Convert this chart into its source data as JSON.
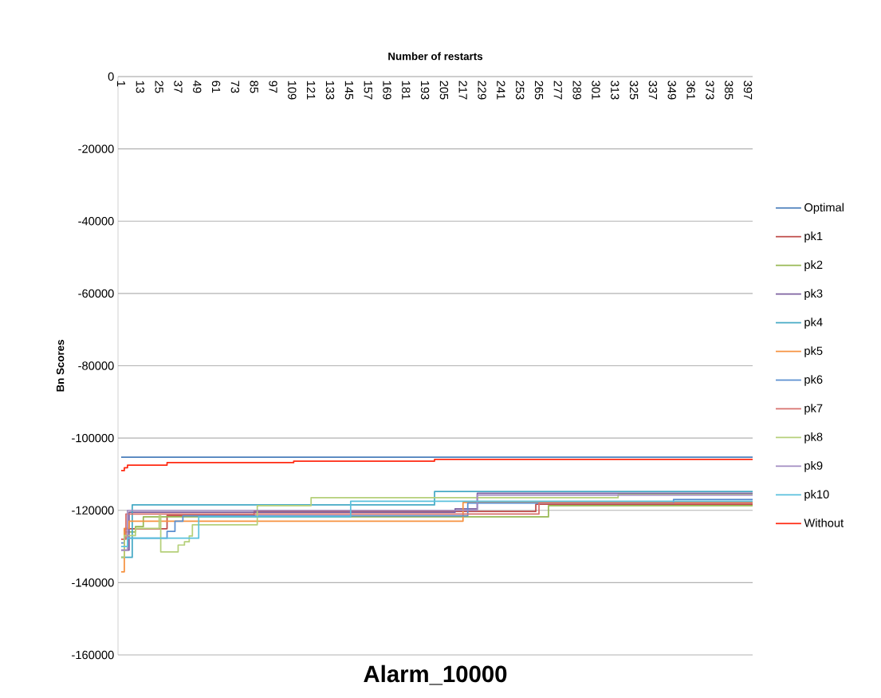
{
  "chart_data": {
    "type": "step",
    "title": "Alarm_10000",
    "xlabel": "Number of restarts",
    "ylabel": "Bn Scores",
    "xlim": [
      -1,
      400
    ],
    "xticks": [
      1,
      13,
      25,
      37,
      49,
      61,
      73,
      85,
      97,
      109,
      121,
      133,
      145,
      157,
      169,
      181,
      193,
      205,
      217,
      229,
      241,
      253,
      265,
      277,
      289,
      301,
      313,
      325,
      337,
      349,
      361,
      373,
      385,
      397
    ],
    "ylim": [
      -160000,
      0
    ],
    "yticks": [
      -160000,
      -140000,
      -120000,
      -100000,
      -80000,
      -60000,
      -40000,
      -20000,
      0
    ],
    "grid": "y",
    "legend": "right",
    "series": [
      {
        "name": "Optimal",
        "color": "#4a7ebb",
        "x": [
          1,
          400
        ],
        "values": [
          -105300,
          -105300
        ]
      },
      {
        "name": "pk1",
        "color": "#be4b48",
        "x": [
          1,
          3,
          30,
          85,
          263,
          400
        ],
        "values": [
          -128000,
          -125100,
          -121400,
          -120300,
          -118300,
          -118300
        ]
      },
      {
        "name": "pk2",
        "color": "#98b954",
        "x": [
          1,
          3,
          10,
          15,
          271,
          400
        ],
        "values": [
          -133000,
          -126000,
          -124500,
          -121800,
          -118700,
          -118700
        ]
      },
      {
        "name": "pk3",
        "color": "#7d60a0",
        "x": [
          1,
          6,
          212,
          226,
          400
        ],
        "values": [
          -131000,
          -120500,
          -119600,
          -115300,
          -115300
        ]
      },
      {
        "name": "pk4",
        "color": "#46aac5",
        "x": [
          1,
          8,
          199,
          400
        ],
        "values": [
          -133000,
          -118500,
          -114800,
          -114800
        ]
      },
      {
        "name": "pk5",
        "color": "#f69240",
        "x": [
          1,
          3,
          6,
          217,
          400
        ],
        "values": [
          -137000,
          -125000,
          -123000,
          -117800,
          -117800
        ]
      },
      {
        "name": "pk6",
        "color": "#5a8fd0",
        "x": [
          1,
          3,
          30,
          35,
          40,
          220,
          350,
          400
        ],
        "values": [
          -129000,
          -127700,
          -125800,
          -123000,
          -121500,
          -118000,
          -117000,
          -117000
        ]
      },
      {
        "name": "pk7",
        "color": "#d8706c",
        "x": [
          1,
          4,
          265,
          400
        ],
        "values": [
          -128000,
          -121000,
          -118000,
          -118000
        ]
      },
      {
        "name": "pk8",
        "color": "#b5d07a",
        "x": [
          1,
          3,
          10,
          25,
          26,
          37,
          41,
          44,
          46,
          87,
          121,
          315,
          400
        ],
        "values": [
          -133000,
          -127000,
          -125000,
          -121500,
          -131500,
          -129600,
          -128700,
          -127100,
          -124000,
          -118700,
          -116500,
          -115600,
          -115600
        ]
      },
      {
        "name": "pk9",
        "color": "#a28bc1",
        "x": [
          1,
          5,
          226,
          400
        ],
        "values": [
          -131000,
          -120000,
          -115800,
          -115800
        ]
      },
      {
        "name": "pk10",
        "color": "#5bc1dd",
        "x": [
          1,
          5,
          50,
          146,
          400
        ],
        "values": [
          -130000,
          -127700,
          -121800,
          -117500,
          -117500
        ]
      },
      {
        "name": "Without",
        "color": "#ff2a12",
        "x": [
          1,
          3,
          5,
          30,
          110,
          199,
          400
        ],
        "values": [
          -109000,
          -108200,
          -107500,
          -106800,
          -106400,
          -105900,
          -105900
        ]
      }
    ]
  }
}
